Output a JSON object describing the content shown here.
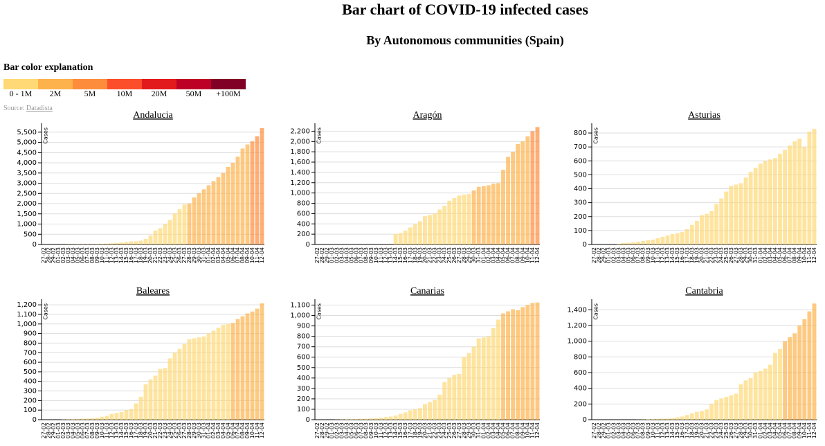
{
  "title": "Bar chart of COVID-19 infected cases",
  "subtitle": "By Autonomous communities (Spain)",
  "legend": {
    "title": "Bar color explanation",
    "items": [
      {
        "label": "0 - 1M",
        "color": "#fed976"
      },
      {
        "label": "2M",
        "color": "#feb24c"
      },
      {
        "label": "5M",
        "color": "#fd8d3c"
      },
      {
        "label": "10M",
        "color": "#fc4e2a"
      },
      {
        "label": "20M",
        "color": "#e31a1c"
      },
      {
        "label": "50M",
        "color": "#bd0026"
      },
      {
        "label": "+100M",
        "color": "#800026"
      }
    ]
  },
  "source": {
    "prefix": "Source:",
    "link": "Datadista"
  },
  "chart_data": [
    {
      "type": "bar",
      "title": "Andalucia",
      "y_label": "Cases",
      "categories": [
        "27-02",
        "28-02",
        "29-02",
        "01-03",
        "02-03",
        "03-03",
        "04-03",
        "05-03",
        "06-03",
        "07-03",
        "08-03",
        "09-03",
        "10-03",
        "11-03",
        "12-03",
        "13-03",
        "14-03",
        "15-03",
        "16-03",
        "17-03",
        "18-03",
        "19-03",
        "20-03",
        "21-03",
        "22-03",
        "23-03",
        "24-03",
        "25-03",
        "26-03",
        "27-03",
        "28-03",
        "29-03",
        "30-03",
        "31-03",
        "01-04",
        "02-04",
        "03-04",
        "04-04",
        "05-04",
        "06-04",
        "07-04",
        "08-04",
        "09-04",
        "10-04",
        "11-04",
        "12-04"
      ],
      "values": [
        0,
        0,
        0,
        0,
        0,
        6,
        7,
        12,
        12,
        13,
        13,
        20,
        30,
        40,
        54,
        71,
        90,
        115,
        150,
        160,
        190,
        269,
        437,
        683,
        800,
        1000,
        1200,
        1515,
        1725,
        1961,
        2011,
        2300,
        2500,
        2700,
        2900,
        3100,
        3300,
        3500,
        3800,
        4000,
        4300,
        4700,
        4900,
        5050,
        5300,
        5700
      ],
      "colors": [
        "#fed976",
        "#fed976",
        "#fed976",
        "#fed976",
        "#fed976",
        "#fed976",
        "#fed976",
        "#fed976",
        "#fed976",
        "#fed976",
        "#fed976",
        "#fed976",
        "#fed976",
        "#fed976",
        "#fed976",
        "#fed976",
        "#fed976",
        "#fed976",
        "#fed976",
        "#fed976",
        "#fed976",
        "#fed976",
        "#fed976",
        "#fed976",
        "#fed976",
        "#fed976",
        "#fed976",
        "#fed976",
        "#fed976",
        "#fed976",
        "#feb24c",
        "#feb24c",
        "#feb24c",
        "#feb24c",
        "#feb24c",
        "#feb24c",
        "#feb24c",
        "#feb24c",
        "#feb24c",
        "#feb24c",
        "#feb24c",
        "#feb24c",
        "#feb24c",
        "#fd8d3c",
        "#fd8d3c",
        "#fd8d3c"
      ],
      "ylim": [
        0,
        5800
      ],
      "yticks": [
        0,
        500,
        {
          "value": 1000,
          "label": "1,000"
        },
        {
          "value": 1500,
          "label": "1,500"
        },
        {
          "value": 2000,
          "label": "2,000"
        },
        {
          "value": 2500,
          "label": "2,500"
        },
        {
          "value": 3000,
          "label": "3,000"
        },
        {
          "value": 3500,
          "label": "3,500"
        },
        {
          "value": 4000,
          "label": "4,000"
        },
        {
          "value": 4500,
          "label": "4,500"
        },
        {
          "value": 5000,
          "label": "5,000"
        },
        {
          "value": 5500,
          "label": "5,500"
        }
      ]
    },
    {
      "type": "bar",
      "title": "Aragón",
      "y_label": "Cases",
      "categories": [
        "27-02",
        "28-02",
        "29-02",
        "01-03",
        "02-03",
        "03-03",
        "04-03",
        "05-03",
        "06-03",
        "07-03",
        "08-03",
        "09-03",
        "10-03",
        "11-03",
        "12-03",
        "13-03",
        "14-03",
        "15-03",
        "16-03",
        "17-03",
        "18-03",
        "19-03",
        "20-03",
        "21-03",
        "22-03",
        "23-03",
        "24-03",
        "25-03",
        "26-03",
        "27-03",
        "28-03",
        "29-03",
        "30-03",
        "31-03",
        "01-04",
        "02-04",
        "03-04",
        "04-04",
        "05-04",
        "06-04",
        "07-04",
        "08-04",
        "09-04",
        "10-04",
        "11-04",
        "12-04"
      ],
      "values": [
        0,
        0,
        0,
        0,
        0,
        0,
        0,
        0,
        0,
        0,
        0,
        0,
        0,
        0,
        0,
        0,
        200,
        220,
        270,
        330,
        390,
        450,
        550,
        570,
        600,
        680,
        750,
        850,
        900,
        950,
        970,
        980,
        1050,
        1120,
        1130,
        1150,
        1180,
        1190,
        1450,
        1700,
        1800,
        1950,
        2000,
        2100,
        2200,
        2280
      ],
      "colors": [
        "#fed976",
        "#fed976",
        "#fed976",
        "#fed976",
        "#fed976",
        "#fed976",
        "#fed976",
        "#fed976",
        "#fed976",
        "#fed976",
        "#fed976",
        "#fed976",
        "#fed976",
        "#fed976",
        "#fed976",
        "#fed976",
        "#fed976",
        "#fed976",
        "#fed976",
        "#fed976",
        "#fed976",
        "#fed976",
        "#fed976",
        "#fed976",
        "#fed976",
        "#fed976",
        "#fed976",
        "#fed976",
        "#fed976",
        "#fed976",
        "#fed976",
        "#fed976",
        "#feb24c",
        "#feb24c",
        "#feb24c",
        "#feb24c",
        "#feb24c",
        "#feb24c",
        "#feb24c",
        "#feb24c",
        "#feb24c",
        "#feb24c",
        "#feb24c",
        "#feb24c",
        "#fd8d3c",
        "#fd8d3c"
      ],
      "ylim": [
        0,
        2300
      ],
      "yticks": [
        0,
        200,
        400,
        600,
        800,
        {
          "value": 1000,
          "label": "1,000"
        },
        {
          "value": 1200,
          "label": "1,200"
        },
        {
          "value": 1400,
          "label": "1,400"
        },
        {
          "value": 1600,
          "label": "1,600"
        },
        {
          "value": 1800,
          "label": "1,800"
        },
        {
          "value": 2000,
          "label": "2,000"
        },
        {
          "value": 2200,
          "label": "2,200"
        }
      ]
    },
    {
      "type": "bar",
      "title": "Asturias",
      "y_label": "Cases",
      "categories": [
        "27-02",
        "28-02",
        "29-02",
        "01-03",
        "02-03",
        "03-03",
        "04-03",
        "05-03",
        "06-03",
        "07-03",
        "08-03",
        "09-03",
        "10-03",
        "11-03",
        "12-03",
        "13-03",
        "14-03",
        "15-03",
        "16-03",
        "17-03",
        "18-03",
        "19-03",
        "20-03",
        "21-03",
        "22-03",
        "23-03",
        "24-03",
        "25-03",
        "26-03",
        "27-03",
        "28-03",
        "29-03",
        "30-03",
        "31-03",
        "01-04",
        "02-04",
        "03-04",
        "04-04",
        "05-04",
        "06-04",
        "07-04",
        "08-04",
        "09-04",
        "10-04",
        "11-04",
        "12-04"
      ],
      "values": [
        0,
        0,
        0,
        0,
        0,
        5,
        10,
        12,
        15,
        20,
        25,
        30,
        35,
        45,
        55,
        65,
        75,
        80,
        90,
        110,
        140,
        170,
        210,
        220,
        240,
        290,
        330,
        380,
        420,
        430,
        440,
        480,
        520,
        550,
        580,
        600,
        610,
        620,
        650,
        680,
        710,
        740,
        760,
        700,
        810,
        830
      ],
      "colors": [
        "#fed976",
        "#fed976",
        "#fed976",
        "#fed976",
        "#fed976",
        "#fed976",
        "#fed976",
        "#fed976",
        "#fed976",
        "#fed976",
        "#fed976",
        "#fed976",
        "#fed976",
        "#fed976",
        "#fed976",
        "#fed976",
        "#fed976",
        "#fed976",
        "#fed976",
        "#fed976",
        "#fed976",
        "#fed976",
        "#fed976",
        "#fed976",
        "#fed976",
        "#fed976",
        "#fed976",
        "#fed976",
        "#fed976",
        "#fed976",
        "#fed976",
        "#fed976",
        "#fed976",
        "#fed976",
        "#fed976",
        "#fed976",
        "#fed976",
        "#fed976",
        "#fed976",
        "#fed976",
        "#fed976",
        "#fed976",
        "#fed976",
        "#fed976",
        "#fed976",
        "#fed976"
      ],
      "ylim": [
        0,
        850
      ],
      "yticks": [
        0,
        100,
        200,
        300,
        400,
        500,
        600,
        700,
        800
      ]
    },
    {
      "type": "bar",
      "title": "Baleares",
      "y_label": "Cases",
      "categories": [
        "27-02",
        "28-02",
        "29-02",
        "01-03",
        "02-03",
        "03-03",
        "04-03",
        "05-03",
        "06-03",
        "07-03",
        "08-03",
        "09-03",
        "10-03",
        "11-03",
        "12-03",
        "13-03",
        "14-03",
        "15-03",
        "16-03",
        "17-03",
        "18-03",
        "19-03",
        "20-03",
        "21-03",
        "22-03",
        "23-03",
        "24-03",
        "25-03",
        "26-03",
        "27-03",
        "28-03",
        "29-03",
        "30-03",
        "31-03",
        "01-04",
        "02-04",
        "03-04",
        "04-04",
        "05-04",
        "06-04",
        "07-04",
        "08-04",
        "09-04",
        "10-04",
        "11-04",
        "12-04"
      ],
      "values": [
        0,
        0,
        0,
        0,
        2,
        3,
        5,
        8,
        10,
        12,
        15,
        20,
        30,
        40,
        60,
        70,
        80,
        100,
        110,
        170,
        240,
        370,
        420,
        460,
        530,
        540,
        640,
        700,
        740,
        790,
        840,
        850,
        860,
        870,
        900,
        930,
        960,
        990,
        1000,
        1010,
        1050,
        1080,
        1110,
        1130,
        1160,
        1215
      ],
      "colors": [
        "#fed976",
        "#fed976",
        "#fed976",
        "#fed976",
        "#fed976",
        "#fed976",
        "#fed976",
        "#fed976",
        "#fed976",
        "#fed976",
        "#fed976",
        "#fed976",
        "#fed976",
        "#fed976",
        "#fed976",
        "#fed976",
        "#fed976",
        "#fed976",
        "#fed976",
        "#fed976",
        "#fed976",
        "#fed976",
        "#fed976",
        "#fed976",
        "#fed976",
        "#fed976",
        "#fed976",
        "#fed976",
        "#fed976",
        "#fed976",
        "#fed976",
        "#fed976",
        "#fed976",
        "#fed976",
        "#fed976",
        "#fed976",
        "#fed976",
        "#fed976",
        "#fed976",
        "#feb24c",
        "#feb24c",
        "#feb24c",
        "#feb24c",
        "#feb24c",
        "#feb24c",
        "#feb24c"
      ],
      "ylim": [
        0,
        1230
      ],
      "yticks": [
        0,
        100,
        200,
        300,
        400,
        500,
        600,
        700,
        800,
        900,
        {
          "value": 1000,
          "label": "1,000"
        },
        {
          "value": 1100,
          "label": "1,100"
        },
        {
          "value": 1200,
          "label": "1,200"
        }
      ]
    },
    {
      "type": "bar",
      "title": "Canarias",
      "y_label": "Cases",
      "categories": [
        "27-02",
        "28-02",
        "29-02",
        "01-03",
        "02-03",
        "03-03",
        "04-03",
        "05-03",
        "06-03",
        "07-03",
        "08-03",
        "09-03",
        "10-03",
        "11-03",
        "12-03",
        "13-03",
        "14-03",
        "15-03",
        "16-03",
        "17-03",
        "18-03",
        "19-03",
        "20-03",
        "21-03",
        "22-03",
        "23-03",
        "24-03",
        "25-03",
        "26-03",
        "27-03",
        "28-03",
        "29-03",
        "30-03",
        "31-03",
        "01-04",
        "02-04",
        "03-04",
        "04-04",
        "05-04",
        "06-04",
        "07-04",
        "08-04",
        "09-04",
        "10-04",
        "11-04",
        "12-04"
      ],
      "values": [
        0,
        0,
        0,
        0,
        1,
        2,
        3,
        5,
        6,
        8,
        10,
        12,
        15,
        20,
        25,
        30,
        40,
        55,
        70,
        90,
        100,
        110,
        150,
        170,
        190,
        240,
        360,
        400,
        430,
        440,
        600,
        640,
        700,
        780,
        790,
        800,
        880,
        960,
        1020,
        1040,
        1060,
        1050,
        1080,
        1100,
        1120,
        1125
      ],
      "colors": [
        "#fed976",
        "#fed976",
        "#fed976",
        "#fed976",
        "#fed976",
        "#fed976",
        "#fed976",
        "#fed976",
        "#fed976",
        "#fed976",
        "#fed976",
        "#fed976",
        "#fed976",
        "#fed976",
        "#fed976",
        "#fed976",
        "#fed976",
        "#fed976",
        "#fed976",
        "#fed976",
        "#fed976",
        "#fed976",
        "#fed976",
        "#fed976",
        "#fed976",
        "#fed976",
        "#fed976",
        "#fed976",
        "#fed976",
        "#fed976",
        "#fed976",
        "#fed976",
        "#fed976",
        "#fed976",
        "#fed976",
        "#fed976",
        "#fed976",
        "#fed976",
        "#feb24c",
        "#feb24c",
        "#feb24c",
        "#feb24c",
        "#feb24c",
        "#feb24c",
        "#feb24c",
        "#feb24c"
      ],
      "ylim": [
        0,
        1130
      ],
      "yticks": [
        0,
        100,
        200,
        300,
        400,
        500,
        600,
        700,
        800,
        900,
        {
          "value": 1000,
          "label": "1,000"
        },
        {
          "value": 1100,
          "label": "1,100"
        }
      ]
    },
    {
      "type": "bar",
      "title": "Cantabria",
      "y_label": "Cases",
      "categories": [
        "27-02",
        "28-02",
        "29-02",
        "01-03",
        "02-03",
        "03-03",
        "04-03",
        "05-03",
        "06-03",
        "07-03",
        "08-03",
        "09-03",
        "10-03",
        "11-03",
        "12-03",
        "13-03",
        "14-03",
        "15-03",
        "16-03",
        "17-03",
        "18-03",
        "19-03",
        "20-03",
        "21-03",
        "22-03",
        "23-03",
        "24-03",
        "25-03",
        "26-03",
        "27-03",
        "28-03",
        "29-03",
        "30-03",
        "31-03",
        "01-04",
        "02-04",
        "03-04",
        "04-04",
        "05-04",
        "06-04",
        "07-04",
        "08-04",
        "09-04",
        "10-04",
        "11-04",
        "12-04"
      ],
      "values": [
        0,
        0,
        0,
        0,
        0,
        0,
        0,
        0,
        0,
        1,
        2,
        5,
        8,
        10,
        12,
        15,
        20,
        30,
        40,
        60,
        80,
        100,
        110,
        130,
        200,
        250,
        270,
        290,
        310,
        330,
        450,
        500,
        530,
        600,
        620,
        650,
        700,
        850,
        900,
        1000,
        1050,
        1100,
        1200,
        1280,
        1380,
        1480
      ],
      "colors": [
        "#fed976",
        "#fed976",
        "#fed976",
        "#fed976",
        "#fed976",
        "#fed976",
        "#fed976",
        "#fed976",
        "#fed976",
        "#fed976",
        "#fed976",
        "#fed976",
        "#fed976",
        "#fed976",
        "#fed976",
        "#fed976",
        "#fed976",
        "#fed976",
        "#fed976",
        "#fed976",
        "#fed976",
        "#fed976",
        "#fed976",
        "#fed976",
        "#fed976",
        "#fed976",
        "#fed976",
        "#fed976",
        "#fed976",
        "#fed976",
        "#fed976",
        "#fed976",
        "#fed976",
        "#fed976",
        "#fed976",
        "#fed976",
        "#fed976",
        "#fed976",
        "#fed976",
        "#feb24c",
        "#feb24c",
        "#feb24c",
        "#feb24c",
        "#feb24c",
        "#feb24c",
        "#feb24c"
      ],
      "ylim": [
        0,
        1500
      ],
      "yticks": [
        0,
        200,
        400,
        600,
        800,
        {
          "value": 1000,
          "label": "1,000"
        },
        {
          "value": 1200,
          "label": "1,200"
        },
        {
          "value": 1400,
          "label": "1,400"
        }
      ]
    }
  ]
}
